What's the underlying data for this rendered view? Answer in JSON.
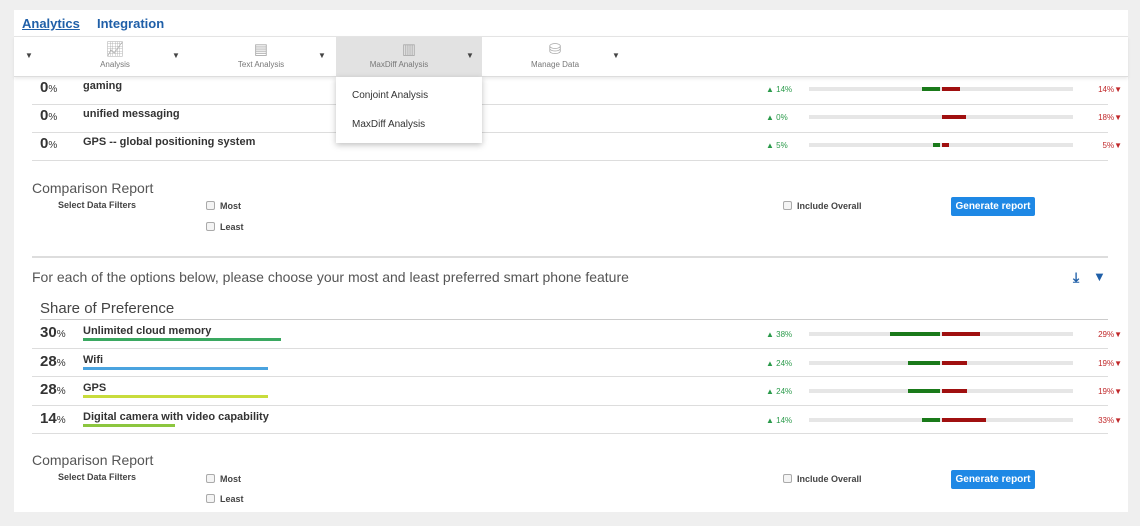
{
  "nav": {
    "tabs": [
      "Analytics",
      "Integration"
    ]
  },
  "toolbar": {
    "items": [
      {
        "label": "Analysis",
        "icon": "chart-icon"
      },
      {
        "label": "Text Analysis",
        "icon": "document-icon"
      },
      {
        "label": "MaxDiff Analysis",
        "icon": "bar-chart-icon"
      },
      {
        "label": "Manage Data",
        "icon": "database-icon"
      }
    ]
  },
  "dropdown": {
    "items": [
      "Conjoint Analysis",
      "MaxDiff Analysis"
    ]
  },
  "top_rows": [
    {
      "pct": "0",
      "label": "gaming",
      "most": "14%",
      "least": "14%",
      "most_v": 14,
      "least_v": 14
    },
    {
      "pct": "0",
      "label": "unified messaging",
      "most": "0%",
      "least": "18%",
      "most_v": 0,
      "least_v": 18
    },
    {
      "pct": "0",
      "label": "GPS -- global positioning system",
      "most": "5%",
      "least": "5%",
      "most_v": 5,
      "least_v": 5
    }
  ],
  "report1": {
    "title": "Comparison Report",
    "filters_label": "Select Data Filters",
    "most": "Most",
    "least": "Least",
    "include_overall": "Include Overall",
    "button": "Generate report"
  },
  "question": "For each of the options below, please choose your most and least preferred smart phone feature",
  "share_title": "Share of Preference",
  "rows": [
    {
      "pct": "30",
      "label": "Unlimited cloud memory",
      "color": "#3aa860",
      "most": "38%",
      "least": "29%",
      "most_v": 38,
      "least_v": 29,
      "share": 30
    },
    {
      "pct": "28",
      "label": "Wifi",
      "color": "#4aa3df",
      "most": "24%",
      "least": "19%",
      "most_v": 24,
      "least_v": 19,
      "share": 28
    },
    {
      "pct": "28",
      "label": "GPS",
      "color": "#c8dc3c",
      "most": "24%",
      "least": "19%",
      "most_v": 24,
      "least_v": 19,
      "share": 28
    },
    {
      "pct": "14",
      "label": "Digital camera with video capability",
      "color": "#8cc63f",
      "most": "14%",
      "least": "33%",
      "most_v": 14,
      "least_v": 33,
      "share": 14
    }
  ],
  "report2": {
    "title": "Comparison Report",
    "filters_label": "Select Data Filters",
    "most": "Most",
    "least": "Least",
    "include_overall": "Include Overall",
    "button": "Generate report"
  },
  "pct_sign": "%"
}
